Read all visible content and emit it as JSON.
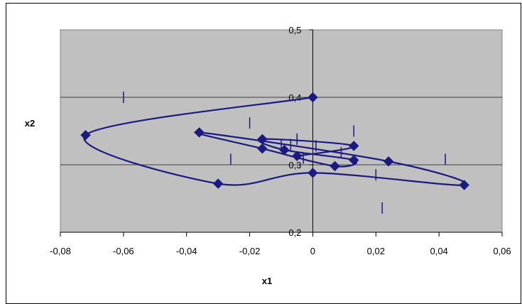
{
  "chart_data": {
    "type": "scatter",
    "xlabel": "x1",
    "ylabel": "x2",
    "xlim": [
      -0.08,
      0.06
    ],
    "ylim": [
      0.2,
      0.5
    ],
    "x_ticks": [
      -0.08,
      -0.06,
      -0.04,
      -0.02,
      0,
      0.02,
      0.04,
      0.06
    ],
    "x_tick_labels": [
      "-0,08",
      "-0,06",
      "-0,04",
      "-0,02",
      "0",
      "0,02",
      "0,04",
      "0,06"
    ],
    "y_ticks": [
      0.2,
      0.3,
      0.4,
      0.5
    ],
    "y_tick_labels": [
      "0,2",
      "0,3",
      "0,4",
      "0,5"
    ],
    "grid": true,
    "legend": "none",
    "colors": {
      "series": "#1a1a80",
      "plot_background": "#c0c0c0",
      "grid": "#404040"
    },
    "series": [
      {
        "values": [
          [
            0,
            0.4
          ],
          [
            -0.072,
            0.344
          ],
          [
            -0.03,
            0.272
          ],
          [
            0,
            0.288
          ],
          [
            0.048,
            0.27
          ],
          [
            0.024,
            0.305
          ],
          [
            -0.036,
            0.348
          ],
          [
            -0.016,
            0.324
          ],
          [
            0.007,
            0.298
          ],
          [
            0.013,
            0.307
          ],
          [
            -0.009,
            0.322
          ],
          [
            -0.016,
            0.338
          ],
          [
            0.013,
            0.328
          ],
          [
            -0.005,
            0.313
          ]
        ]
      }
    ],
    "tick_marks_on_curve": [
      [
        -0.06,
        0.4
      ],
      [
        -0.026,
        0.308
      ],
      [
        0.022,
        0.236
      ],
      [
        0.042,
        0.308
      ],
      [
        0.013,
        0.35
      ],
      [
        -0.02,
        0.362
      ],
      [
        -0.007,
        0.33
      ],
      [
        0.02,
        0.285
      ],
      [
        0.009,
        0.318
      ],
      [
        0.001,
        0.328
      ],
      [
        -0.01,
        0.33
      ],
      [
        -0.003,
        0.31
      ],
      [
        -0.005,
        0.338
      ]
    ]
  }
}
